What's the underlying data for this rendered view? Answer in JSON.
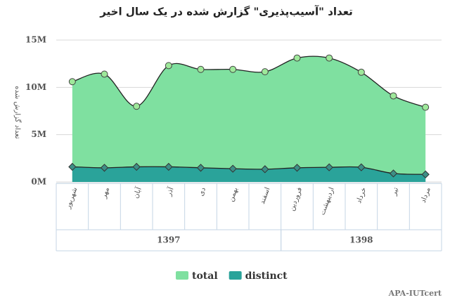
{
  "chart_data": {
    "type": "area",
    "title": "تعداد \"آسیب‌پذیری\" گزارش شده در یک سال اخیر",
    "y_label": "تعداد گزارش شده",
    "categories": [
      "شهریور",
      "مهر",
      "آبان",
      "آذر",
      "دی",
      "بهمن",
      "اسفند",
      "فروردین",
      "اردیبهشت",
      "خرداد",
      "تیر",
      "مرداد"
    ],
    "groups": [
      {
        "label": "1397",
        "span": 7
      },
      {
        "label": "1398",
        "span": 5
      }
    ],
    "series": [
      {
        "name": "total",
        "color": "#7fe0a0",
        "marker_color": "#9ee89a",
        "values": [
          10600000,
          11400000,
          8000000,
          12300000,
          11900000,
          11900000,
          11650000,
          13100000,
          13100000,
          11600000,
          9100000,
          7900000
        ]
      },
      {
        "name": "distinct",
        "color": "#2aa39a",
        "marker_color": "#3d8f86",
        "values": [
          1600000,
          1500000,
          1600000,
          1600000,
          1500000,
          1400000,
          1350000,
          1500000,
          1550000,
          1550000,
          900000,
          800000
        ]
      }
    ],
    "ylim": [
      0,
      15000000
    ],
    "yticks": [
      {
        "value": 0,
        "label": "0M"
      },
      {
        "value": 5000000,
        "label": "5M"
      },
      {
        "value": 10000000,
        "label": "10M"
      },
      {
        "value": 15000000,
        "label": "15M"
      }
    ],
    "grid": true,
    "credit": "APA-IUTcert"
  }
}
